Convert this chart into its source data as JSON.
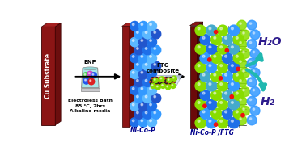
{
  "background": "white",
  "bath_text": [
    "Electroless Bath",
    "85 °C, 2hrs",
    "Alkaline media"
  ],
  "enp_label": "ENP",
  "ni_co_p_label": "Ni-Co-P",
  "ni_co_p_ftg_label": "Ni-Co-P /FTG",
  "ftg_label": "FTG\ncomposite",
  "h2_label": "H₂",
  "h2o_label": "H₂O",
  "h2_color": "#2D1B8C",
  "h2o_color": "#2D1B8C",
  "arrow_color": "#20B8B0",
  "cu_front": "#8B1515",
  "cu_top": "#A52020",
  "cu_right": "#6B0E0E",
  "blue1": "#1E6FE8",
  "blue2": "#3399FF",
  "blue3": "#5BB8FF",
  "blue4": "#2255CC",
  "green_sp": "#88DD00",
  "red_sp": "#EE1111",
  "dark_sp": "#223355",
  "teal_sp": "#44AACC"
}
